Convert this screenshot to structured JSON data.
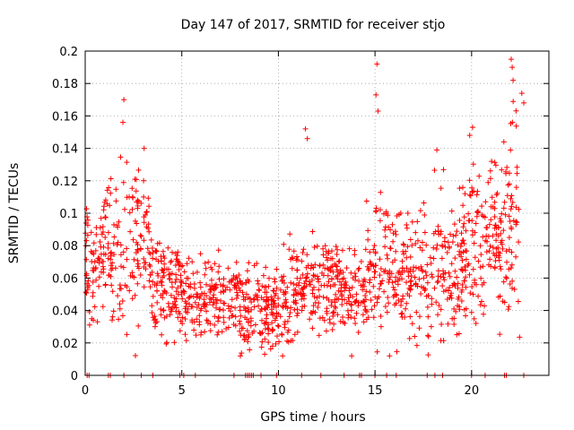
{
  "chart_data": {
    "type": "scatter",
    "title": "Day 147 of 2017, SRMTID for receiver stjo",
    "xlabel": "GPS time / hours",
    "ylabel": "SRMTID / TECUs",
    "xlim": [
      0,
      24
    ],
    "ylim": [
      0,
      0.2
    ],
    "xticks": [
      0,
      5,
      10,
      15,
      20
    ],
    "xtick_labels": [
      "0",
      "5",
      "10",
      "15",
      "20"
    ],
    "yticks": [
      0,
      0.02,
      0.04,
      0.06,
      0.08,
      0.1,
      0.12,
      0.14,
      0.16,
      0.18,
      0.2
    ],
    "ytick_labels": [
      "0",
      "0.02",
      "0.04",
      "0.06",
      "0.08",
      "0.1",
      "0.12",
      "0.14",
      "0.16",
      "0.18",
      "0.2"
    ],
    "grid": true,
    "marker": "+",
    "color": "#ff0000",
    "series": [
      {
        "name": "SRMTID",
        "trend": [
          {
            "x": 0.0,
            "y": 0.068,
            "spread": 0.02,
            "peak": 0.11
          },
          {
            "x": 0.5,
            "y": 0.062,
            "spread": 0.02,
            "peak": 0.1
          },
          {
            "x": 1.0,
            "y": 0.08,
            "spread": 0.025,
            "peak": 0.13
          },
          {
            "x": 1.5,
            "y": 0.07,
            "spread": 0.022,
            "peak": 0.12
          },
          {
            "x": 2.0,
            "y": 0.075,
            "spread": 0.025,
            "peak": 0.17
          },
          {
            "x": 2.5,
            "y": 0.072,
            "spread": 0.022,
            "peak": 0.12
          },
          {
            "x": 3.0,
            "y": 0.085,
            "spread": 0.022,
            "peak": 0.14
          },
          {
            "x": 3.5,
            "y": 0.06,
            "spread": 0.015,
            "peak": 0.085
          },
          {
            "x": 4.0,
            "y": 0.055,
            "spread": 0.013,
            "peak": 0.08
          },
          {
            "x": 5.0,
            "y": 0.052,
            "spread": 0.013,
            "peak": 0.075
          },
          {
            "x": 6.0,
            "y": 0.048,
            "spread": 0.013,
            "peak": 0.075
          },
          {
            "x": 7.0,
            "y": 0.045,
            "spread": 0.013,
            "peak": 0.08
          },
          {
            "x": 8.0,
            "y": 0.043,
            "spread": 0.013,
            "peak": 0.09
          },
          {
            "x": 9.0,
            "y": 0.04,
            "spread": 0.012,
            "peak": 0.07
          },
          {
            "x": 10.0,
            "y": 0.04,
            "spread": 0.012,
            "peak": 0.065
          },
          {
            "x": 11.0,
            "y": 0.052,
            "spread": 0.014,
            "peak": 0.15
          },
          {
            "x": 12.0,
            "y": 0.055,
            "spread": 0.014,
            "peak": 0.08
          },
          {
            "x": 13.0,
            "y": 0.055,
            "spread": 0.013,
            "peak": 0.08
          },
          {
            "x": 14.0,
            "y": 0.05,
            "spread": 0.013,
            "peak": 0.08
          },
          {
            "x": 15.0,
            "y": 0.065,
            "spread": 0.02,
            "peak": 0.19
          },
          {
            "x": 16.0,
            "y": 0.062,
            "spread": 0.018,
            "peak": 0.1
          },
          {
            "x": 17.0,
            "y": 0.06,
            "spread": 0.017,
            "peak": 0.1
          },
          {
            "x": 18.0,
            "y": 0.058,
            "spread": 0.018,
            "peak": 0.14
          },
          {
            "x": 19.0,
            "y": 0.055,
            "spread": 0.018,
            "peak": 0.12
          },
          {
            "x": 20.0,
            "y": 0.085,
            "spread": 0.022,
            "peak": 0.15
          },
          {
            "x": 21.0,
            "y": 0.08,
            "spread": 0.022,
            "peak": 0.13
          },
          {
            "x": 22.0,
            "y": 0.09,
            "spread": 0.028,
            "peak": 0.19
          },
          {
            "x": 22.5,
            "y": 0.1,
            "spread": 0.03,
            "peak": 0.175
          }
        ],
        "spikes": [
          {
            "x": 2.0,
            "y": 0.17
          },
          {
            "x": 1.95,
            "y": 0.156
          },
          {
            "x": 11.4,
            "y": 0.152
          },
          {
            "x": 11.5,
            "y": 0.146
          },
          {
            "x": 15.1,
            "y": 0.192
          },
          {
            "x": 15.05,
            "y": 0.173
          },
          {
            "x": 15.15,
            "y": 0.163
          },
          {
            "x": 20.05,
            "y": 0.153
          },
          {
            "x": 19.9,
            "y": 0.148
          },
          {
            "x": 22.05,
            "y": 0.195
          },
          {
            "x": 22.1,
            "y": 0.19
          },
          {
            "x": 22.15,
            "y": 0.182
          },
          {
            "x": 22.6,
            "y": 0.174
          },
          {
            "x": 22.7,
            "y": 0.168
          },
          {
            "x": 3.05,
            "y": 0.14
          },
          {
            "x": 18.2,
            "y": 0.139
          }
        ],
        "zeros_x": [
          0.1,
          0.2,
          1.2,
          1.3,
          2.0,
          2.9,
          3.5,
          4.9,
          5.1,
          5.7,
          7.7,
          8.3,
          8.4,
          8.5,
          8.6,
          8.7,
          9.1,
          9.9,
          11.2,
          12.2,
          13.4,
          14.2,
          14.3,
          15.0,
          15.6,
          16.1,
          17.7,
          18.1,
          18.5,
          20.0,
          20.7,
          21.7,
          21.8,
          22.7
        ]
      }
    ]
  }
}
